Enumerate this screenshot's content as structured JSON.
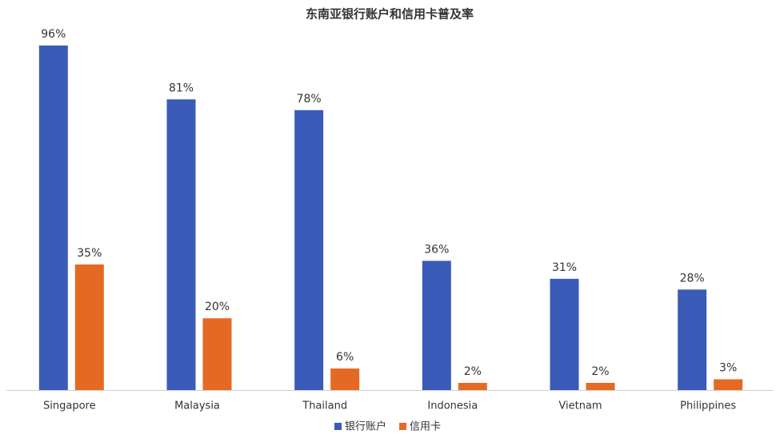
{
  "chart_data": {
    "type": "bar",
    "title": "东南亚银行账户和信用卡普及率",
    "categories": [
      "Singapore",
      "Malaysia",
      "Thailand",
      "Indonesia",
      "Vietnam",
      "Philippines"
    ],
    "series": [
      {
        "name": "银行账户",
        "color": "#3a5bb8",
        "values": [
          96,
          81,
          78,
          36,
          31,
          28
        ],
        "value_labels": [
          "96%",
          "81%",
          "78%",
          "36%",
          "31%",
          "28%"
        ]
      },
      {
        "name": "信用卡",
        "color": "#e46a24",
        "values": [
          35,
          20,
          6,
          2,
          2,
          3
        ],
        "value_labels": [
          "35%",
          "20%",
          "6%",
          "2%",
          "2%",
          "3%"
        ]
      }
    ],
    "ylim": [
      0,
      100
    ],
    "legend": "bottom"
  }
}
